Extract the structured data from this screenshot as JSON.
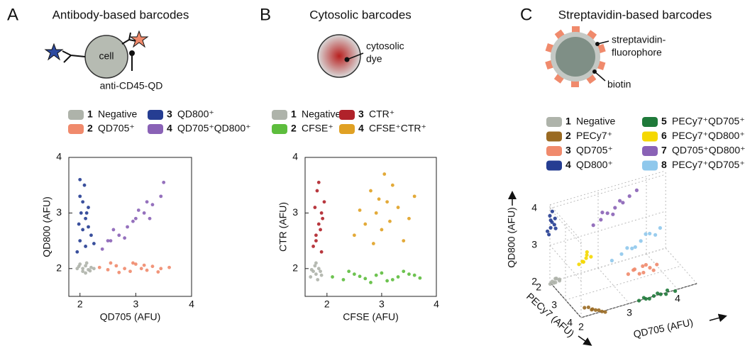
{
  "chart_data": [
    {
      "type": "scatter",
      "panel": "A",
      "title": "Antibody-based barcodes",
      "annotations": [
        "cell",
        "anti-CD45-QD"
      ],
      "xlabel": "QD705 (AFU)",
      "ylabel": "QD800 (AFU)",
      "xlim": [
        1.8,
        4
      ],
      "ylim": [
        1.5,
        4
      ],
      "xticks": [
        2,
        3,
        4
      ],
      "yticks": [
        2,
        3,
        4
      ],
      "series": [
        {
          "number": "1",
          "name": "Negative",
          "color": "#aeb3aa",
          "x": [
            1.95,
            2.05,
            2.1,
            2.15,
            2.2,
            2.0,
            2.1,
            2.25,
            1.98,
            2.12,
            2.18,
            2.05
          ],
          "values": [
            2.0,
            1.95,
            2.05,
            1.98,
            2.02,
            2.08,
            1.92,
            2.0,
            2.04,
            2.1,
            1.96,
            2.0
          ]
        },
        {
          "number": "2",
          "name": "QD705⁺",
          "color": "#f08a6c",
          "x": [
            2.35,
            2.5,
            2.65,
            2.8,
            2.9,
            3.0,
            3.1,
            3.2,
            3.3,
            3.45,
            3.6,
            2.7,
            2.95,
            3.15,
            3.4,
            2.55
          ],
          "values": [
            2.02,
            1.98,
            2.05,
            2.0,
            1.95,
            2.08,
            2.0,
            1.97,
            2.04,
            2.0,
            2.02,
            1.93,
            2.1,
            2.06,
            1.94,
            2.1
          ]
        },
        {
          "number": "3",
          "name": "QD800⁺",
          "color": "#253d92",
          "x": [
            1.95,
            2.0,
            2.05,
            2.1,
            2.15,
            2.0,
            2.08,
            2.2,
            1.98,
            2.12,
            2.05,
            2.1,
            2.0,
            2.15,
            2.25,
            2.02
          ],
          "values": [
            2.3,
            2.5,
            2.7,
            2.9,
            3.1,
            3.3,
            3.5,
            2.6,
            2.8,
            3.0,
            3.2,
            2.4,
            3.6,
            2.75,
            2.45,
            3.0
          ]
        },
        {
          "number": "4",
          "name": "QD705⁺QD800⁺",
          "color": "#8a62b6",
          "x": [
            2.4,
            2.55,
            2.7,
            2.85,
            3.0,
            3.15,
            3.3,
            3.45,
            2.6,
            2.8,
            3.05,
            3.25,
            2.5,
            2.95,
            3.2,
            3.5
          ],
          "values": [
            2.35,
            2.5,
            2.6,
            2.75,
            2.9,
            3.0,
            3.15,
            3.3,
            2.7,
            2.55,
            3.05,
            2.9,
            2.5,
            2.85,
            3.2,
            3.55
          ]
        }
      ]
    },
    {
      "type": "scatter",
      "panel": "B",
      "title": "Cytosolic barcodes",
      "annotations": [
        "cytosolic",
        "dye"
      ],
      "xlabel": "CFSE (AFU)",
      "ylabel": "CTR (AFU)",
      "xlim": [
        1.6,
        4
      ],
      "ylim": [
        1.5,
        4
      ],
      "xticks": [
        2,
        3,
        4
      ],
      "yticks": [
        2,
        3,
        4
      ],
      "series": [
        {
          "number": "1",
          "name": "Negative",
          "color": "#aeb3aa",
          "x": [
            1.7,
            1.75,
            1.8,
            1.85,
            1.9,
            1.78,
            1.83,
            1.72,
            1.88,
            1.8
          ],
          "values": [
            1.85,
            1.95,
            1.9,
            2.0,
            1.88,
            2.05,
            1.8,
            1.98,
            1.95,
            2.1
          ]
        },
        {
          "number": "2",
          "name": "CFSE⁺",
          "color": "#5dbd3d",
          "x": [
            2.1,
            2.3,
            2.5,
            2.7,
            2.9,
            3.1,
            3.3,
            3.5,
            3.7,
            2.4,
            2.8,
            3.0,
            3.2,
            3.6,
            2.6,
            3.4
          ],
          "values": [
            1.85,
            1.8,
            1.9,
            1.82,
            1.88,
            1.78,
            1.85,
            1.9,
            1.83,
            1.95,
            1.75,
            1.92,
            1.8,
            1.88,
            1.86,
            1.95
          ]
        },
        {
          "number": "3",
          "name": "CTR⁺",
          "color": "#b0222a",
          "x": [
            1.75,
            1.8,
            1.85,
            1.9,
            1.95,
            1.82,
            1.88,
            1.78,
            1.92,
            1.85,
            1.8,
            1.9
          ],
          "values": [
            2.4,
            2.6,
            2.8,
            3.0,
            3.2,
            3.4,
            2.7,
            3.1,
            2.9,
            3.55,
            2.5,
            2.3
          ]
        },
        {
          "number": "4",
          "name": "CFSE⁺CTR⁺",
          "color": "#e0a124",
          "x": [
            2.5,
            2.7,
            2.9,
            3.1,
            3.3,
            3.5,
            2.8,
            3.0,
            3.2,
            2.6,
            3.4,
            3.05,
            2.85,
            3.15,
            2.95,
            3.6
          ],
          "values": [
            2.6,
            2.8,
            3.0,
            3.2,
            3.1,
            2.9,
            3.4,
            2.7,
            3.5,
            3.05,
            2.5,
            3.7,
            2.45,
            2.85,
            3.25,
            3.3
          ]
        }
      ]
    },
    {
      "type": "scatter3d",
      "panel": "C",
      "title": "Streptavidin-based barcodes",
      "annotations": [
        "streptavidin-",
        "fluorophore",
        "biotin"
      ],
      "xlabel": "QD705 (AFU)",
      "ylabel": "PECy7 (AFU)",
      "zlabel": "QD800 (AFU)",
      "xlim": [
        2,
        4.4
      ],
      "ylim": [
        2,
        4
      ],
      "zlim": [
        2,
        4.1
      ],
      "xticks": [
        2,
        3,
        4
      ],
      "yticks": [
        2,
        3,
        4
      ],
      "zticks": [
        2,
        3,
        4
      ],
      "series": [
        {
          "number": "1",
          "name": "Negative",
          "color": "#aeb3aa",
          "x": [
            2.05,
            2.1,
            2.15,
            2.2,
            2.0,
            2.12,
            2.18,
            2.08
          ],
          "y": [
            2.0,
            2.05,
            1.95,
            2.0,
            2.02,
            1.98,
            2.06,
            2.0
          ],
          "z": [
            2.0,
            1.98,
            2.02,
            2.0,
            1.96,
            2.04,
            2.0,
            1.95
          ]
        },
        {
          "number": "2",
          "name": "PECy7⁺",
          "color": "#9a6a22",
          "x": [
            2.2,
            2.3,
            2.4,
            2.5,
            2.25,
            2.35,
            2.45,
            2.3
          ],
          "y": [
            3.6,
            3.75,
            3.9,
            4.0,
            3.7,
            3.85,
            3.95,
            3.8
          ],
          "z": [
            2.0,
            1.98,
            2.0,
            1.96,
            2.04,
            2.0,
            1.97,
            2.02
          ]
        },
        {
          "number": "3",
          "name": "QD705⁺",
          "color": "#f08a6c",
          "x": [
            3.3,
            3.45,
            3.6,
            3.75,
            3.9,
            3.5,
            3.7,
            3.4,
            3.8,
            3.6
          ],
          "y": [
            3.0,
            2.95,
            3.05,
            3.0,
            2.98,
            3.1,
            2.9,
            3.02,
            3.08,
            3.0
          ],
          "z": [
            2.2,
            2.25,
            2.15,
            2.2,
            2.22,
            2.18,
            2.25,
            2.28,
            2.15,
            2.3
          ]
        },
        {
          "number": "4",
          "name": "QD800⁺",
          "color": "#253d92",
          "x": [
            1.95,
            2.0,
            2.05,
            2.1,
            2.0,
            2.08,
            2.03,
            1.98,
            2.1,
            2.05
          ],
          "y": [
            2.0,
            2.05,
            1.98,
            2.02,
            2.0,
            2.04,
            1.96,
            2.0,
            2.06,
            2.0
          ],
          "z": [
            3.4,
            3.5,
            3.6,
            3.7,
            3.8,
            3.55,
            3.65,
            3.3,
            3.45,
            3.9
          ]
        },
        {
          "number": "5",
          "name": "PECy7⁺QD705⁺",
          "color": "#1f7a3a",
          "x": [
            3.2,
            3.35,
            3.5,
            3.65,
            3.8,
            3.95,
            3.4,
            3.6,
            3.75,
            3.3
          ],
          "y": [
            4.0,
            3.98,
            4.02,
            4.0,
            3.96,
            4.0,
            4.05,
            3.95,
            4.03,
            4.0
          ],
          "z": [
            2.0,
            1.98,
            2.02,
            2.0,
            2.03,
            1.97,
            2.0,
            2.02,
            1.98,
            2.04
          ]
        },
        {
          "number": "6",
          "name": "PECy7⁺QD800⁺",
          "color": "#f5d800",
          "x": [
            2.15,
            2.2,
            2.25,
            2.3,
            2.18,
            2.28,
            2.22,
            2.35
          ],
          "y": [
            3.4,
            3.5,
            3.55,
            3.45,
            3.6,
            3.5,
            3.4,
            3.55
          ],
          "z": [
            3.1,
            3.2,
            3.3,
            3.4,
            3.25,
            3.35,
            3.15,
            3.3
          ]
        },
        {
          "number": "7",
          "name": "QD705⁺QD800⁺",
          "color": "#8a62b6",
          "x": [
            2.9,
            3.05,
            3.2,
            3.35,
            3.5,
            3.65,
            3.1,
            3.3,
            3.45,
            3.8
          ],
          "y": [
            2.0,
            2.02,
            1.98,
            2.0,
            2.04,
            2.0,
            1.96,
            2.02,
            2.0,
            2.0
          ],
          "z": [
            3.2,
            3.3,
            3.4,
            3.5,
            3.6,
            3.7,
            3.45,
            3.35,
            3.65,
            3.8
          ]
        },
        {
          "number": "8",
          "name": "PECy7⁺QD705⁺QD800⁺",
          "color": "#8fc8ec",
          "x": [
            2.8,
            3.0,
            3.2,
            3.4,
            3.6,
            3.8,
            3.1,
            3.3,
            3.5,
            3.7
          ],
          "y": [
            3.5,
            3.5,
            3.55,
            3.5,
            3.45,
            3.5,
            3.55,
            3.45,
            3.5,
            3.5
          ],
          "z": [
            3.0,
            3.1,
            3.2,
            3.3,
            3.4,
            3.5,
            3.25,
            3.15,
            3.45,
            3.35
          ]
        }
      ]
    }
  ]
}
